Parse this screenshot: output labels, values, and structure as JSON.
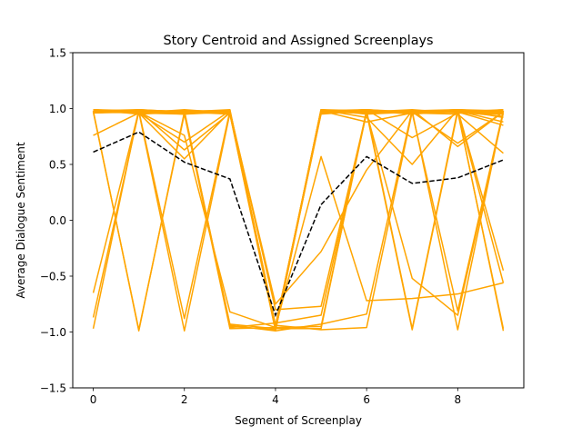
{
  "chart_data": {
    "type": "line",
    "title": "Story Centroid and Assigned Screenplays",
    "xlabel": "Segment of Screenplay",
    "ylabel": "Average Dialogue Sentiment",
    "xlim": [
      -0.45,
      9.45
    ],
    "ylim": [
      -1.5,
      1.5
    ],
    "xticks": [
      0,
      2,
      4,
      6,
      8
    ],
    "xtick_labels": [
      "0",
      "2",
      "4",
      "6",
      "8"
    ],
    "yticks": [
      -1.5,
      -1.0,
      -0.5,
      0.0,
      0.5,
      1.0,
      1.5
    ],
    "ytick_labels": [
      "−1.5",
      "−1.0",
      "−0.5",
      "0.0",
      "0.5",
      "1.0",
      "1.5"
    ],
    "grid": false,
    "x": [
      0,
      1,
      2,
      3,
      4,
      5,
      6,
      7,
      8,
      9
    ],
    "screenplay_color": "#ffa500",
    "centroid_color": "#000000",
    "centroid": [
      0.61,
      0.79,
      0.52,
      0.37,
      -0.85,
      0.14,
      0.57,
      0.33,
      0.38,
      0.54
    ],
    "screenplays": [
      [
        0.98,
        0.97,
        0.98,
        0.97,
        -0.96,
        0.99,
        0.98,
        0.97,
        0.99,
        0.98
      ],
      [
        0.97,
        0.98,
        0.96,
        0.98,
        -0.97,
        0.98,
        0.99,
        0.96,
        0.98,
        0.97
      ],
      [
        0.99,
        0.96,
        0.99,
        0.96,
        -0.95,
        0.97,
        0.96,
        0.98,
        0.97,
        0.99
      ],
      [
        0.96,
        0.99,
        0.97,
        0.99,
        -0.98,
        0.96,
        0.97,
        0.99,
        0.96,
        0.95
      ],
      [
        0.98,
        0.97,
        0.95,
        0.97,
        -0.97,
        0.99,
        0.95,
        0.97,
        0.99,
        0.92
      ],
      [
        0.97,
        0.98,
        0.98,
        0.98,
        -0.96,
        0.98,
        0.98,
        0.95,
        0.98,
        0.88
      ],
      [
        0.99,
        0.95,
        0.97,
        0.95,
        -0.99,
        0.97,
        0.96,
        0.98,
        0.97,
        0.85
      ],
      [
        0.96,
        0.97,
        0.96,
        0.97,
        -0.94,
        0.96,
        0.97,
        0.96,
        0.95,
        0.6
      ],
      [
        0.76,
        0.96,
        0.7,
        0.98,
        -0.98,
        0.99,
        0.92,
        0.5,
        0.99,
        0.97
      ],
      [
        0.98,
        0.98,
        0.63,
        0.96,
        -0.95,
        0.98,
        0.88,
        0.96,
        0.97,
        0.98
      ],
      [
        0.97,
        0.97,
        0.98,
        0.97,
        -0.97,
        0.97,
        0.99,
        0.74,
        0.96,
        0.99
      ],
      [
        0.99,
        0.96,
        0.95,
        0.98,
        -0.96,
        0.95,
        0.98,
        0.97,
        0.69,
        0.97
      ],
      [
        -0.65,
        0.98,
        0.97,
        0.97,
        -0.98,
        0.98,
        0.97,
        0.98,
        0.99,
        -0.45
      ],
      [
        -0.87,
        0.97,
        0.98,
        0.95,
        -0.96,
        0.97,
        0.99,
        0.97,
        0.98,
        -0.56
      ],
      [
        -0.97,
        0.99,
        0.96,
        -0.93,
        -0.97,
        0.99,
        0.96,
        -0.98,
        0.97,
        0.96
      ],
      [
        0.98,
        -0.99,
        0.97,
        -0.95,
        -0.98,
        0.98,
        0.98,
        -0.97,
        0.99,
        0.97
      ],
      [
        0.97,
        -0.98,
        0.95,
        -0.97,
        -0.96,
        -0.95,
        0.97,
        0.98,
        -0.98,
        0.98
      ],
      [
        0.99,
        0.97,
        -0.99,
        0.96,
        -0.97,
        -0.97,
        0.99,
        0.96,
        0.97,
        -0.97
      ],
      [
        0.96,
        0.98,
        -0.88,
        0.98,
        -0.94,
        -0.98,
        -0.96,
        0.97,
        0.98,
        -0.99
      ],
      [
        0.98,
        0.96,
        0.55,
        0.97,
        -0.75,
        -0.28,
        0.45,
        0.98,
        0.97,
        0.93
      ],
      [
        0.97,
        0.97,
        0.76,
        -0.82,
        -0.96,
        0.57,
        -0.72,
        -0.7,
        -0.66,
        -0.56
      ],
      [
        0.99,
        0.98,
        0.97,
        -0.96,
        -0.92,
        -0.85,
        0.96,
        -0.52,
        -0.85,
        0.96
      ],
      [
        0.97,
        0.96,
        0.98,
        -0.94,
        -0.99,
        -0.93,
        -0.84,
        0.99,
        0.66,
        0.97
      ],
      [
        0.98,
        0.99,
        0.97,
        0.98,
        -0.8,
        -0.77,
        0.97,
        0.96,
        -0.81,
        0.98
      ]
    ]
  }
}
